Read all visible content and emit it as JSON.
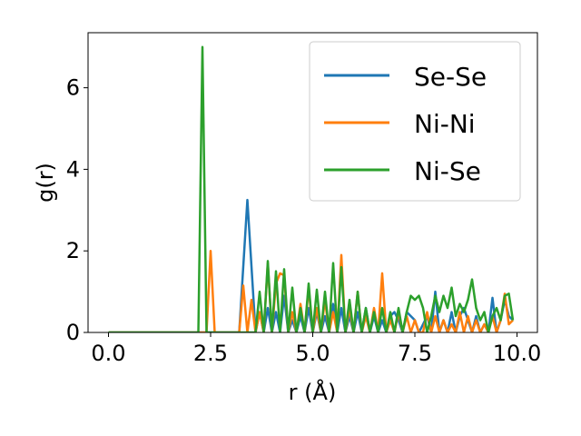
{
  "chart_data": {
    "type": "line",
    "xlabel": "r (Å)",
    "ylabel": "g(r)",
    "xlim": [
      -0.5,
      10.5
    ],
    "ylim": [
      0,
      7.35
    ],
    "xticks": [
      0.0,
      2.5,
      5.0,
      7.5,
      10.0
    ],
    "xtick_labels": [
      "0.0",
      "2.5",
      "5.0",
      "7.5",
      "10.0"
    ],
    "yticks": [
      0,
      2,
      4,
      6
    ],
    "ytick_labels": [
      "0",
      "2",
      "4",
      "6"
    ],
    "grid": false,
    "legend_position": "top-right",
    "series": [
      {
        "name": "Se-Se",
        "color": "#1f77b4",
        "x": [
          0.0,
          3.2,
          3.4,
          3.6,
          3.7,
          3.8,
          3.9,
          4.0,
          4.1,
          4.2,
          4.3,
          4.4,
          4.5,
          4.6,
          4.7,
          4.8,
          4.9,
          5.0,
          5.1,
          5.2,
          5.3,
          5.4,
          5.5,
          5.6,
          5.7,
          5.8,
          5.9,
          6.0,
          6.1,
          6.2,
          6.3,
          6.4,
          6.5,
          6.6,
          6.7,
          6.8,
          6.9,
          7.0,
          7.1,
          7.2,
          7.3,
          7.4,
          7.5,
          7.6,
          7.7,
          7.8,
          7.9,
          8.0,
          8.1,
          8.2,
          8.3,
          8.4,
          8.5,
          8.6,
          8.7,
          8.8,
          8.9,
          9.0,
          9.1,
          9.2,
          9.3,
          9.4,
          9.5,
          9.6,
          9.7,
          9.8,
          9.9
        ],
        "y": [
          0,
          0,
          3.25,
          0,
          0.5,
          0,
          0.6,
          0,
          0.5,
          0,
          0.9,
          0,
          0.3,
          0,
          0.4,
          0,
          0.6,
          0,
          0.5,
          0,
          0.4,
          0,
          0.7,
          0,
          0.6,
          0,
          0.4,
          0,
          0.5,
          0,
          0.6,
          0,
          0.4,
          0,
          0.3,
          0,
          0.4,
          0.5,
          0.3,
          0,
          0.5,
          0.4,
          0.3,
          0,
          0.2,
          0.4,
          0,
          1.0,
          0,
          0.3,
          0,
          0.5,
          0,
          0.4,
          0.6,
          0.3,
          0,
          0.4,
          0,
          0.2,
          0,
          0.85,
          0,
          0.3,
          0.8,
          0.4,
          0.3
        ]
      },
      {
        "name": "Ni-Ni",
        "color": "#ff7f0e",
        "x": [
          0.0,
          2.4,
          2.5,
          2.6,
          2.7,
          3.2,
          3.3,
          3.4,
          3.5,
          3.6,
          3.7,
          3.8,
          3.9,
          4.0,
          4.1,
          4.2,
          4.3,
          4.4,
          4.5,
          4.6,
          4.7,
          4.8,
          4.9,
          5.0,
          5.1,
          5.2,
          5.3,
          5.4,
          5.5,
          5.6,
          5.7,
          5.8,
          5.9,
          6.0,
          6.1,
          6.2,
          6.3,
          6.4,
          6.5,
          6.6,
          6.7,
          6.8,
          6.9,
          7.0,
          7.1,
          7.2,
          7.3,
          7.4,
          7.5,
          7.6,
          7.7,
          7.8,
          7.9,
          8.0,
          8.1,
          8.2,
          8.3,
          8.4,
          8.5,
          8.6,
          8.7,
          8.8,
          8.9,
          9.0,
          9.1,
          9.2,
          9.3,
          9.4,
          9.5,
          9.6,
          9.7,
          9.8,
          9.9
        ],
        "y": [
          0,
          0,
          2.0,
          0,
          0,
          0,
          1.15,
          0,
          0.8,
          0,
          0.5,
          0,
          1.7,
          0,
          1.2,
          1.45,
          1.4,
          0,
          0.5,
          0,
          0.7,
          0,
          1.1,
          0,
          0.6,
          0,
          0.8,
          0,
          0.5,
          0,
          1.9,
          0,
          0.6,
          0,
          1.0,
          0,
          0.4,
          0,
          0.6,
          0,
          1.45,
          0,
          0.3,
          0,
          0.5,
          0,
          0.4,
          0,
          0.3,
          0,
          0,
          0.5,
          0,
          0.4,
          0,
          0.3,
          0,
          0.2,
          0,
          0.5,
          0,
          0.4,
          0,
          0.3,
          0,
          0.2,
          0,
          0.4,
          0,
          0.3,
          0.95,
          0.2,
          0.3
        ]
      },
      {
        "name": "Ni-Se",
        "color": "#2ca02c",
        "x": [
          0.0,
          2.2,
          2.3,
          2.4,
          2.5,
          3.6,
          3.7,
          3.8,
          3.9,
          4.0,
          4.1,
          4.2,
          4.3,
          4.4,
          4.5,
          4.6,
          4.7,
          4.8,
          4.9,
          5.0,
          5.1,
          5.2,
          5.3,
          5.4,
          5.5,
          5.6,
          5.7,
          5.8,
          5.9,
          6.0,
          6.1,
          6.2,
          6.3,
          6.4,
          6.5,
          6.6,
          6.7,
          6.8,
          6.9,
          7.0,
          7.1,
          7.2,
          7.3,
          7.4,
          7.5,
          7.6,
          7.7,
          7.8,
          7.9,
          8.0,
          8.1,
          8.2,
          8.3,
          8.4,
          8.5,
          8.6,
          8.7,
          8.8,
          8.9,
          9.0,
          9.1,
          9.2,
          9.3,
          9.4,
          9.5,
          9.6,
          9.7,
          9.8,
          9.9
        ],
        "y": [
          0,
          0,
          7.0,
          0,
          0,
          0,
          1.0,
          0,
          1.75,
          0,
          1.5,
          0,
          1.55,
          0,
          1.1,
          0,
          0.6,
          0,
          1.2,
          0,
          1.05,
          0,
          1.0,
          0,
          1.7,
          0,
          1.6,
          0,
          0.8,
          0,
          1.0,
          0,
          0.6,
          0,
          0.5,
          0,
          0.6,
          0,
          0.5,
          0,
          0.6,
          0,
          0.5,
          0.9,
          0.8,
          0.9,
          0.6,
          0,
          0.4,
          0.9,
          0.5,
          0.9,
          0.6,
          1.1,
          0.4,
          0.7,
          0.5,
          0.8,
          1.3,
          0.6,
          0.3,
          0.5,
          0,
          0.4,
          0.6,
          0.3,
          0.9,
          0.95,
          0.3
        ]
      }
    ]
  }
}
